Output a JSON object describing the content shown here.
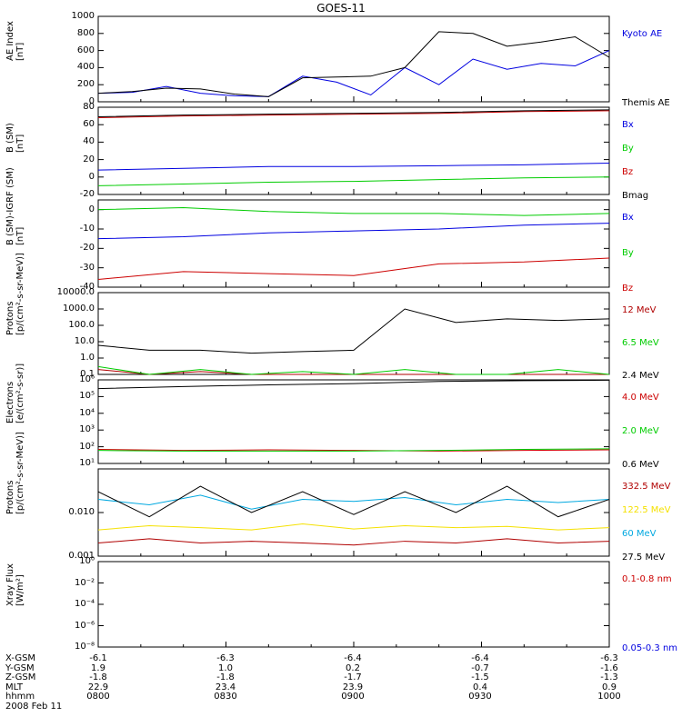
{
  "title": "GOES-11",
  "colors": {
    "black": "#000000",
    "blue": "#0000e0",
    "green": "#00cc00",
    "red": "#cc0000",
    "darkred": "#b00000",
    "yellow": "#f5e100",
    "cyan": "#00a8e0"
  },
  "footer": {
    "row_labels": [
      "X-GSM",
      "Y-GSM",
      "Z-GSM",
      "MLT",
      "hhmm"
    ],
    "date": "2008 Feb 11",
    "columns": [
      [
        "-6.1",
        "1.9",
        "-1.8",
        "22.9",
        "0800"
      ],
      [
        "-6.3",
        "1.0",
        "-1.8",
        "23.4",
        "0830"
      ],
      [
        "-6.4",
        "0.2",
        "-1.7",
        "23.9",
        "0900"
      ],
      [
        "-6.4",
        "-0.7",
        "-1.5",
        "0.4",
        "0930"
      ],
      [
        "-6.3",
        "-1.6",
        "-1.3",
        "0.9",
        "1000"
      ]
    ]
  },
  "chart_data": [
    {
      "type": "line",
      "ylabel": "AE Index\n[nT]",
      "yrange": [
        0,
        1000
      ],
      "ticks": [
        "0",
        "200",
        "400",
        "600",
        "800",
        "1000"
      ],
      "tickvals": [
        0,
        200,
        400,
        600,
        800,
        1000
      ],
      "x": [
        0,
        8,
        16,
        24,
        32,
        40,
        48,
        56,
        64,
        72,
        80,
        88,
        96,
        104,
        112,
        120
      ],
      "series": [
        {
          "name": "Kyoto AE",
          "color": "blue",
          "values": [
            100,
            110,
            180,
            100,
            70,
            60,
            300,
            230,
            80,
            400,
            200,
            500,
            380,
            450,
            420,
            600
          ]
        },
        {
          "name": "Themis AE",
          "color": "black",
          "values": [
            100,
            120,
            160,
            150,
            90,
            60,
            280,
            290,
            300,
            400,
            820,
            800,
            650,
            700,
            760,
            520
          ]
        }
      ]
    },
    {
      "type": "line",
      "ylabel": "B (SM)\n[nT]",
      "yrange": [
        -20,
        80
      ],
      "ticks": [
        "-20",
        "0",
        "20",
        "40",
        "60",
        "80"
      ],
      "tickvals": [
        -20,
        0,
        20,
        40,
        60,
        80
      ],
      "x": [
        0,
        20,
        40,
        60,
        80,
        100,
        120
      ],
      "series": [
        {
          "name": "Bx",
          "color": "blue",
          "values": [
            8,
            10,
            12,
            12,
            13,
            14,
            16
          ]
        },
        {
          "name": "By",
          "color": "green",
          "values": [
            -10,
            -8,
            -6,
            -5,
            -3,
            -1,
            0
          ]
        },
        {
          "name": "Bz",
          "color": "red",
          "values": [
            68,
            70,
            71,
            72,
            73,
            75,
            76
          ]
        },
        {
          "name": "Bmag",
          "color": "black",
          "values": [
            69,
            71,
            72,
            73,
            74,
            76,
            77
          ]
        }
      ]
    },
    {
      "type": "line",
      "ylabel": "B (SM)-IGRF (SM)\n[nT]",
      "yrange": [
        -40,
        5
      ],
      "ticks": [
        "-40",
        "-30",
        "-20",
        "-10",
        "0"
      ],
      "tickvals": [
        -40,
        -30,
        -20,
        -10,
        0
      ],
      "x": [
        0,
        20,
        40,
        60,
        80,
        100,
        120
      ],
      "series": [
        {
          "name": "Bx",
          "color": "blue",
          "values": [
            -15,
            -14,
            -12,
            -11,
            -10,
            -8,
            -7
          ]
        },
        {
          "name": "By",
          "color": "green",
          "values": [
            0,
            1,
            -1,
            -2,
            -2,
            -3,
            -2
          ]
        },
        {
          "name": "Bz",
          "color": "red",
          "values": [
            -36,
            -32,
            -33,
            -34,
            -28,
            -27,
            -25
          ]
        }
      ]
    },
    {
      "type": "line",
      "scale": "log",
      "ylabel": "Protons\n[p/(cm²-s-sr-MeV)]",
      "yrange": [
        0.1,
        10000
      ],
      "ticks": [
        "0.1",
        "1.0",
        "10.0",
        "100.0",
        "1000.0",
        "10000.0"
      ],
      "tickvals": [
        0.1,
        1,
        10,
        100,
        1000,
        10000
      ],
      "x": [
        0,
        12,
        24,
        36,
        48,
        60,
        72,
        84,
        96,
        108,
        120
      ],
      "series": [
        {
          "name": "12 MeV",
          "color": "darkred",
          "values": [
            0.2,
            0.1,
            0.15,
            0.1,
            0.1,
            0.1,
            0.1,
            0.1,
            0.1,
            0.1,
            0.1
          ]
        },
        {
          "name": "6.5 MeV",
          "color": "green",
          "values": [
            0.3,
            0.1,
            0.2,
            0.1,
            0.15,
            0.1,
            0.2,
            0.1,
            0.1,
            0.2,
            0.1
          ]
        },
        {
          "name": "2.4 MeV",
          "color": "black",
          "values": [
            6,
            3,
            3,
            2,
            2.5,
            3,
            1000,
            150,
            250,
            200,
            250
          ]
        }
      ]
    },
    {
      "type": "line",
      "scale": "log",
      "ylabel": "Electrons\n[e/(cm²-s-sr)]",
      "yrange": [
        10,
        1000000
      ],
      "ticks": [
        "10¹",
        "10²",
        "10³",
        "10⁴",
        "10⁵",
        "10⁶"
      ],
      "tickvals": [
        10,
        100,
        1000,
        10000,
        100000,
        1000000
      ],
      "x": [
        0,
        20,
        40,
        60,
        80,
        100,
        120
      ],
      "series": [
        {
          "name": "4.0 MeV",
          "color": "red",
          "values": [
            70,
            60,
            65,
            60,
            55,
            60,
            65
          ]
        },
        {
          "name": "2.0 MeV",
          "color": "green",
          "values": [
            60,
            55,
            55,
            55,
            60,
            70,
            75
          ]
        },
        {
          "name": "0.6 MeV",
          "color": "black",
          "values": [
            300000,
            400000,
            500000,
            600000,
            800000,
            900000,
            950000
          ]
        }
      ]
    },
    {
      "type": "line",
      "scale": "log",
      "ylabel": "Protons\n[p/(cm²-s-sr-MeV)]",
      "yrange": [
        0.001,
        0.1
      ],
      "ticks": [
        "0.001",
        "0.010"
      ],
      "tickvals": [
        0.001,
        0.01
      ],
      "x": [
        0,
        12,
        24,
        36,
        48,
        60,
        72,
        84,
        96,
        108,
        120
      ],
      "series": [
        {
          "name": "332.5 MeV",
          "color": "darkred",
          "values": [
            0.002,
            0.0025,
            0.002,
            0.0022,
            0.002,
            0.0018,
            0.0022,
            0.002,
            0.0025,
            0.002,
            0.0022
          ]
        },
        {
          "name": "122.5 MeV",
          "color": "yellow",
          "values": [
            0.004,
            0.005,
            0.0045,
            0.004,
            0.0055,
            0.0042,
            0.005,
            0.0045,
            0.0048,
            0.004,
            0.0045
          ]
        },
        {
          "name": "60 MeV",
          "color": "cyan",
          "values": [
            0.02,
            0.015,
            0.025,
            0.012,
            0.02,
            0.018,
            0.022,
            0.015,
            0.02,
            0.017,
            0.02
          ]
        },
        {
          "name": "27.5 MeV",
          "color": "black",
          "values": [
            0.03,
            0.008,
            0.04,
            0.01,
            0.03,
            0.009,
            0.03,
            0.01,
            0.04,
            0.008,
            0.02
          ]
        }
      ]
    },
    {
      "type": "line",
      "scale": "log",
      "ylabel": "Xray Flux\n[W/m²]",
      "yrange": [
        1e-08,
        1
      ],
      "ticks": [
        "10⁻⁸",
        "10⁻⁶",
        "10⁻⁴",
        "10⁻²",
        "10⁰"
      ],
      "tickvals": [
        1e-08,
        1e-06,
        0.0001,
        0.01,
        1
      ],
      "x": [],
      "series": [
        {
          "name": "0.1-0.8 nm",
          "color": "red",
          "values": []
        },
        {
          "name": "0.05-0.3 nm",
          "color": "blue",
          "values": []
        }
      ]
    }
  ]
}
